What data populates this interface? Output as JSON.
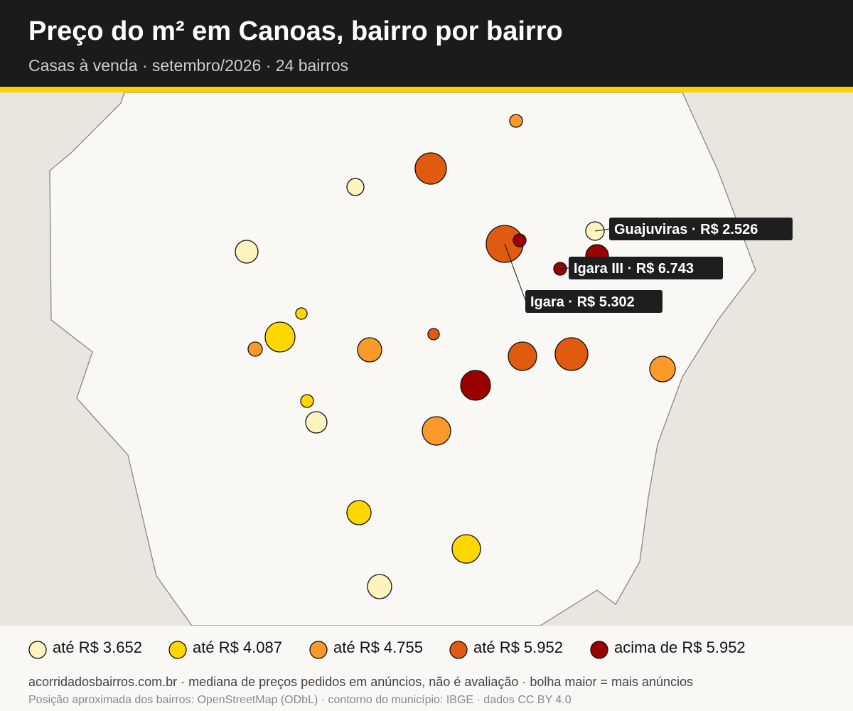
{
  "header": {
    "title": "Preço do m² em Canoas, bairro por bairro",
    "subtitle": "Casas à venda · setembro/2026 · 24 bairros"
  },
  "labels": [
    "Guajuviras · R$ 2.526",
    "Igara III · R$ 6.743",
    "Igara · R$ 5.302"
  ],
  "legend": [
    "até R$ 3.652",
    "até R$ 4.087",
    "até R$ 4.755",
    "até R$ 5.952",
    "acima de R$ 5.952"
  ],
  "footer": {
    "source": "acorridadosbairros.com.br · mediana de preços pedidos em anúncios, não é avaliação · bolha maior = mais anúncios",
    "credits": "Posição aproximada dos bairros: OpenStreetMap (ODbL) · contorno do município: IBGE · dados CC BY 4.0"
  }
}
